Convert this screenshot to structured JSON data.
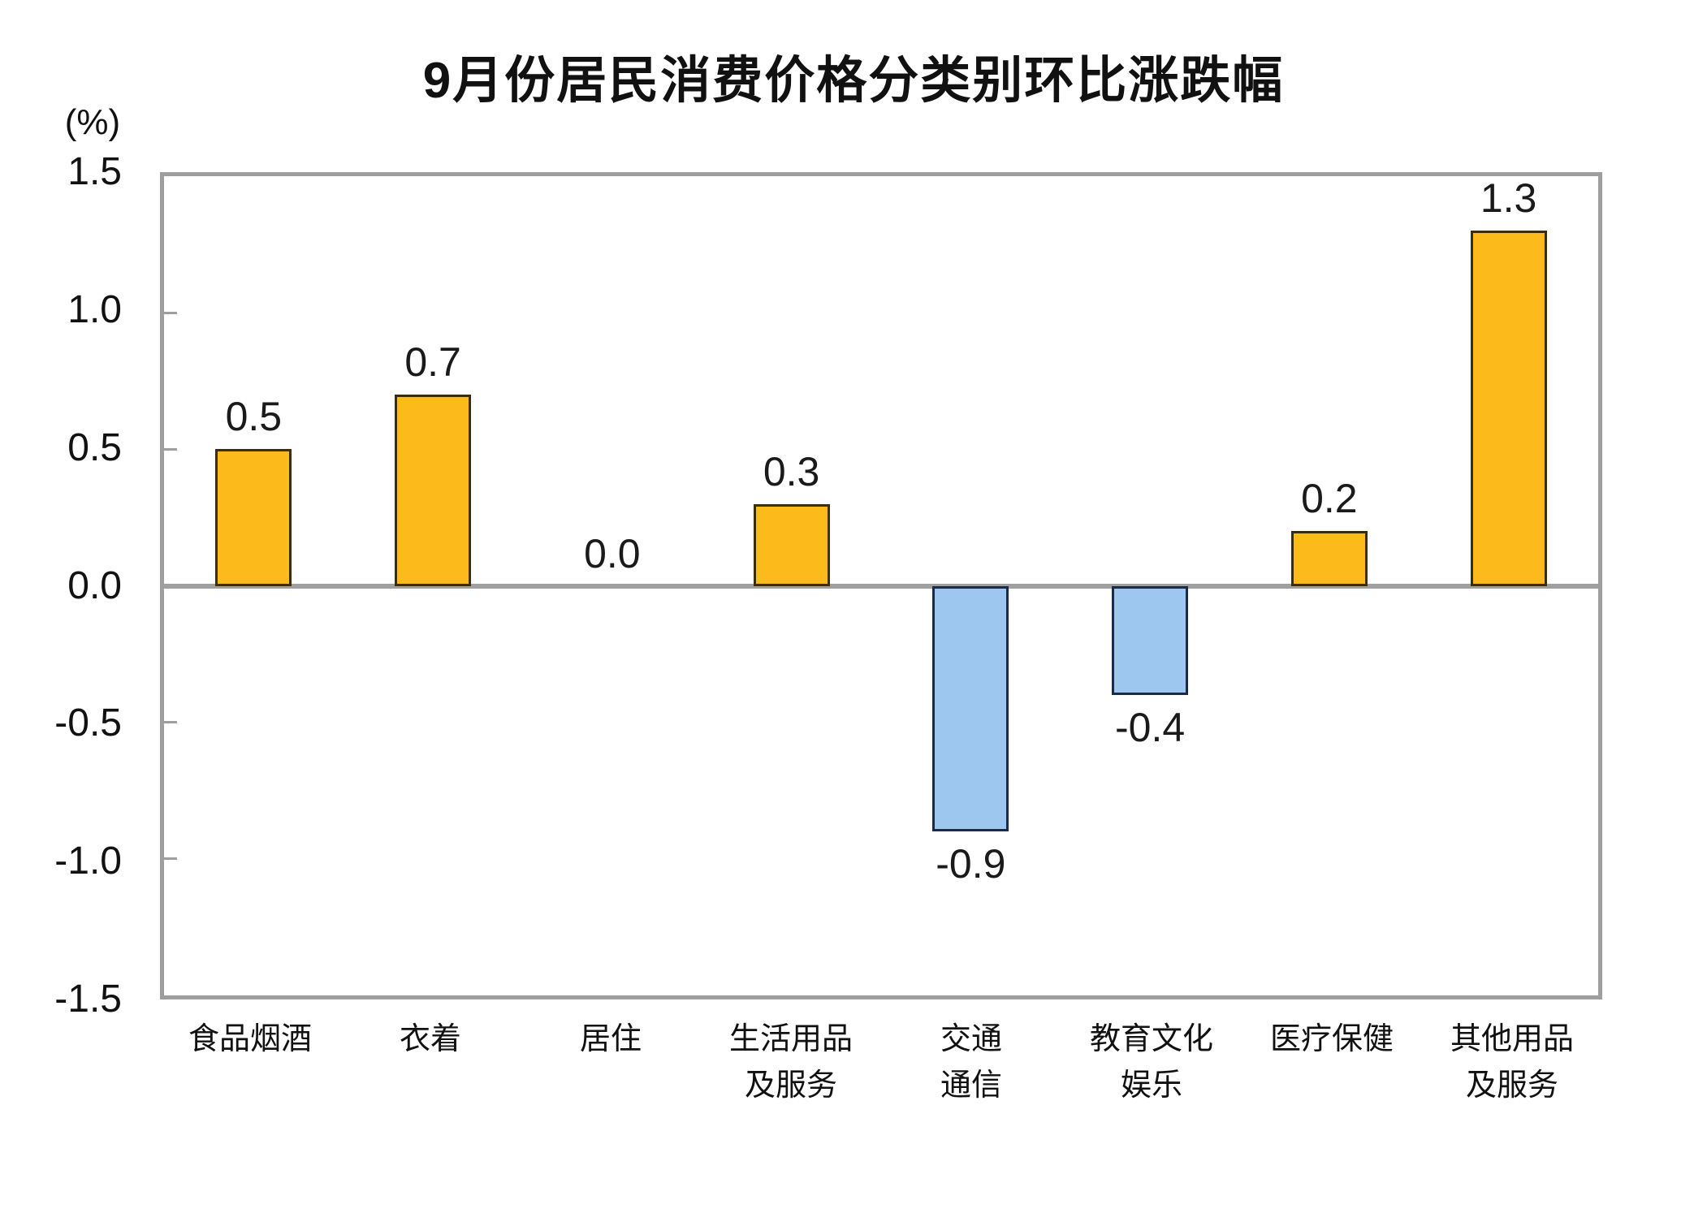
{
  "chart_data": {
    "type": "bar",
    "title": "9月份居民消费价格分类别环比涨跌幅",
    "unit": "(%)",
    "categories": [
      "食品烟酒",
      "衣着",
      "居住",
      "生活用品\n及服务",
      "交通\n通信",
      "教育文化\n娱乐",
      "医疗保健",
      "其他用品\n及服务"
    ],
    "values": [
      0.5,
      0.7,
      0.0,
      0.3,
      -0.9,
      -0.4,
      0.2,
      1.3
    ],
    "value_labels": [
      "0.5",
      "0.7",
      "0.0",
      "0.3",
      "-0.9",
      "-0.4",
      "0.2",
      "1.3"
    ],
    "ylim": [
      -1.5,
      1.5
    ],
    "yticks": [
      1.5,
      1.0,
      0.5,
      0.0,
      -0.5,
      -1.0,
      -1.5
    ],
    "ytick_labels": [
      "1.5",
      "1.0",
      "0.5",
      "0.0",
      "-0.5",
      "-1.0",
      "-1.5"
    ],
    "grid": false,
    "legend_position": "none",
    "colors": {
      "positive_fill": "#fcba1b",
      "positive_border": "#3b2d05",
      "negative_fill": "#9ec7ef",
      "negative_border": "#1b2a49",
      "axis_frame": "#9e9e9e",
      "zero_line": "#a0a0a0",
      "text": "#111111"
    }
  }
}
